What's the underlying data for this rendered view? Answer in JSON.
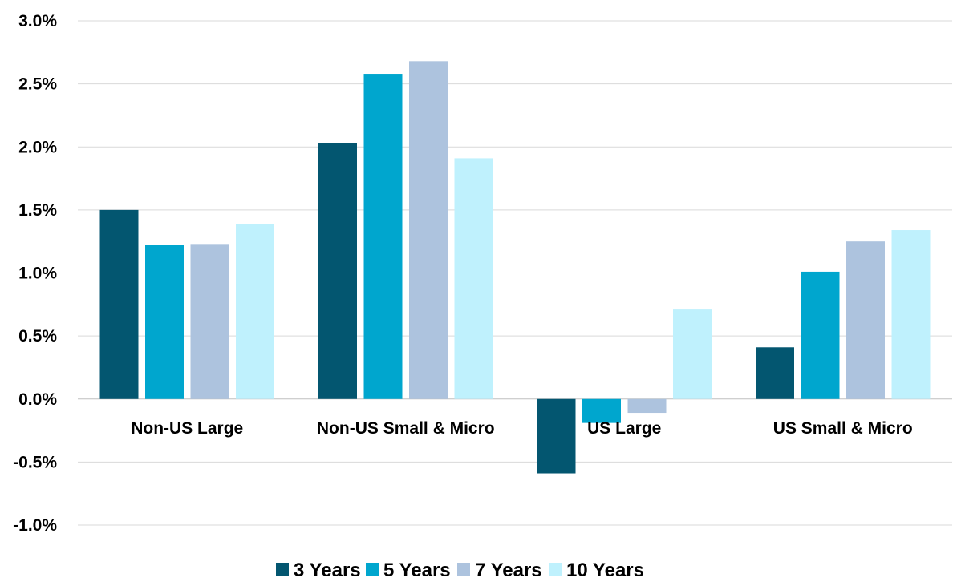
{
  "chart_data": {
    "type": "bar",
    "categories": [
      "Non-US Large",
      "Non-US Small & Micro",
      "US Large",
      "US Small & Micro"
    ],
    "series": [
      {
        "name": "3 Years",
        "color": "#035670",
        "values": [
          1.5,
          2.03,
          -0.59,
          0.41
        ]
      },
      {
        "name": "5 Years",
        "color": "#00A6CE",
        "values": [
          1.22,
          2.58,
          -0.19,
          1.01
        ]
      },
      {
        "name": "7 Years",
        "color": "#ADC3DE",
        "values": [
          1.23,
          2.68,
          -0.11,
          1.25
        ]
      },
      {
        "name": "10 Years",
        "color": "#BFF1FD",
        "values": [
          1.39,
          1.91,
          0.71,
          1.34
        ]
      }
    ],
    "ylim": [
      -1.0,
      3.0
    ],
    "yticks": [
      3.0,
      2.5,
      2.0,
      1.5,
      1.0,
      0.5,
      0.0,
      -0.5,
      -1.0
    ],
    "ytick_labels": [
      "3.0%",
      "2.5%",
      "2.0%",
      "1.5%",
      "1.0%",
      "0.5%",
      "0.0%",
      "-0.5%",
      "-1.0%"
    ],
    "title": "",
    "xlabel": "",
    "ylabel": "",
    "grid": true,
    "legend_position": "bottom"
  }
}
